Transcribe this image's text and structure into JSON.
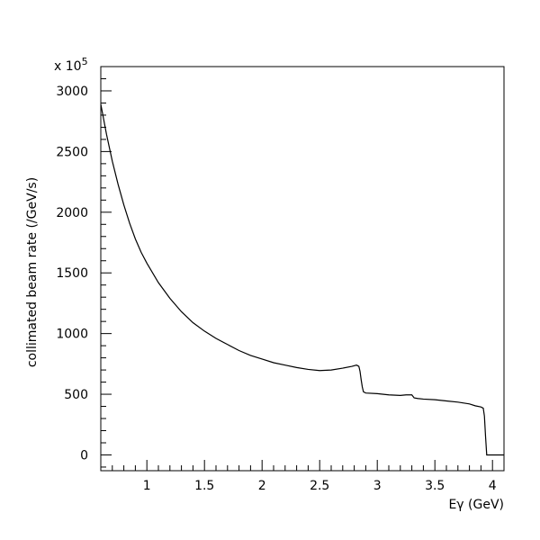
{
  "chart_data": {
    "type": "line",
    "xlabel": "Eγ (GeV)",
    "ylabel": "collimated beam rate (/GeV/s)",
    "y_multiplier_label": "x 10",
    "y_multiplier_exponent": "5",
    "xlim": [
      0.6,
      4.1
    ],
    "ylim": [
      -130,
      3200
    ],
    "x_ticks": [
      1,
      1.5,
      2,
      2.5,
      3,
      3.5,
      4
    ],
    "x_tick_labels": [
      "1",
      "1.5",
      "2",
      "2.5",
      "3",
      "3.5",
      "4"
    ],
    "y_ticks": [
      0,
      500,
      1000,
      1500,
      2000,
      2500,
      3000
    ],
    "y_tick_labels": [
      "0",
      "500",
      "1000",
      "1500",
      "2000",
      "2500",
      "3000"
    ],
    "grid": false,
    "series": [
      {
        "x": [
          0.6,
          0.65,
          0.7,
          0.75,
          0.8,
          0.85,
          0.9,
          0.95,
          1.0,
          1.1,
          1.2,
          1.3,
          1.4,
          1.5,
          1.6,
          1.7,
          1.8,
          1.9,
          2.0,
          2.1,
          2.2,
          2.3,
          2.4,
          2.5,
          2.6,
          2.7,
          2.78,
          2.82,
          2.84,
          2.85,
          2.86,
          2.87,
          2.88,
          2.9,
          3.0,
          3.1,
          3.2,
          3.25,
          3.3,
          3.32,
          3.35,
          3.4,
          3.5,
          3.6,
          3.7,
          3.8,
          3.85,
          3.9,
          3.92,
          3.93,
          3.94,
          3.95,
          4.1
        ],
        "y": [
          2890,
          2640,
          2420,
          2230,
          2060,
          1910,
          1780,
          1670,
          1580,
          1420,
          1290,
          1180,
          1090,
          1020,
          960,
          910,
          860,
          820,
          790,
          760,
          740,
          720,
          705,
          695,
          700,
          715,
          730,
          740,
          730,
          690,
          620,
          560,
          520,
          510,
          505,
          495,
          490,
          495,
          495,
          470,
          465,
          460,
          455,
          445,
          435,
          420,
          405,
          395,
          385,
          320,
          150,
          0,
          0
        ]
      }
    ]
  }
}
